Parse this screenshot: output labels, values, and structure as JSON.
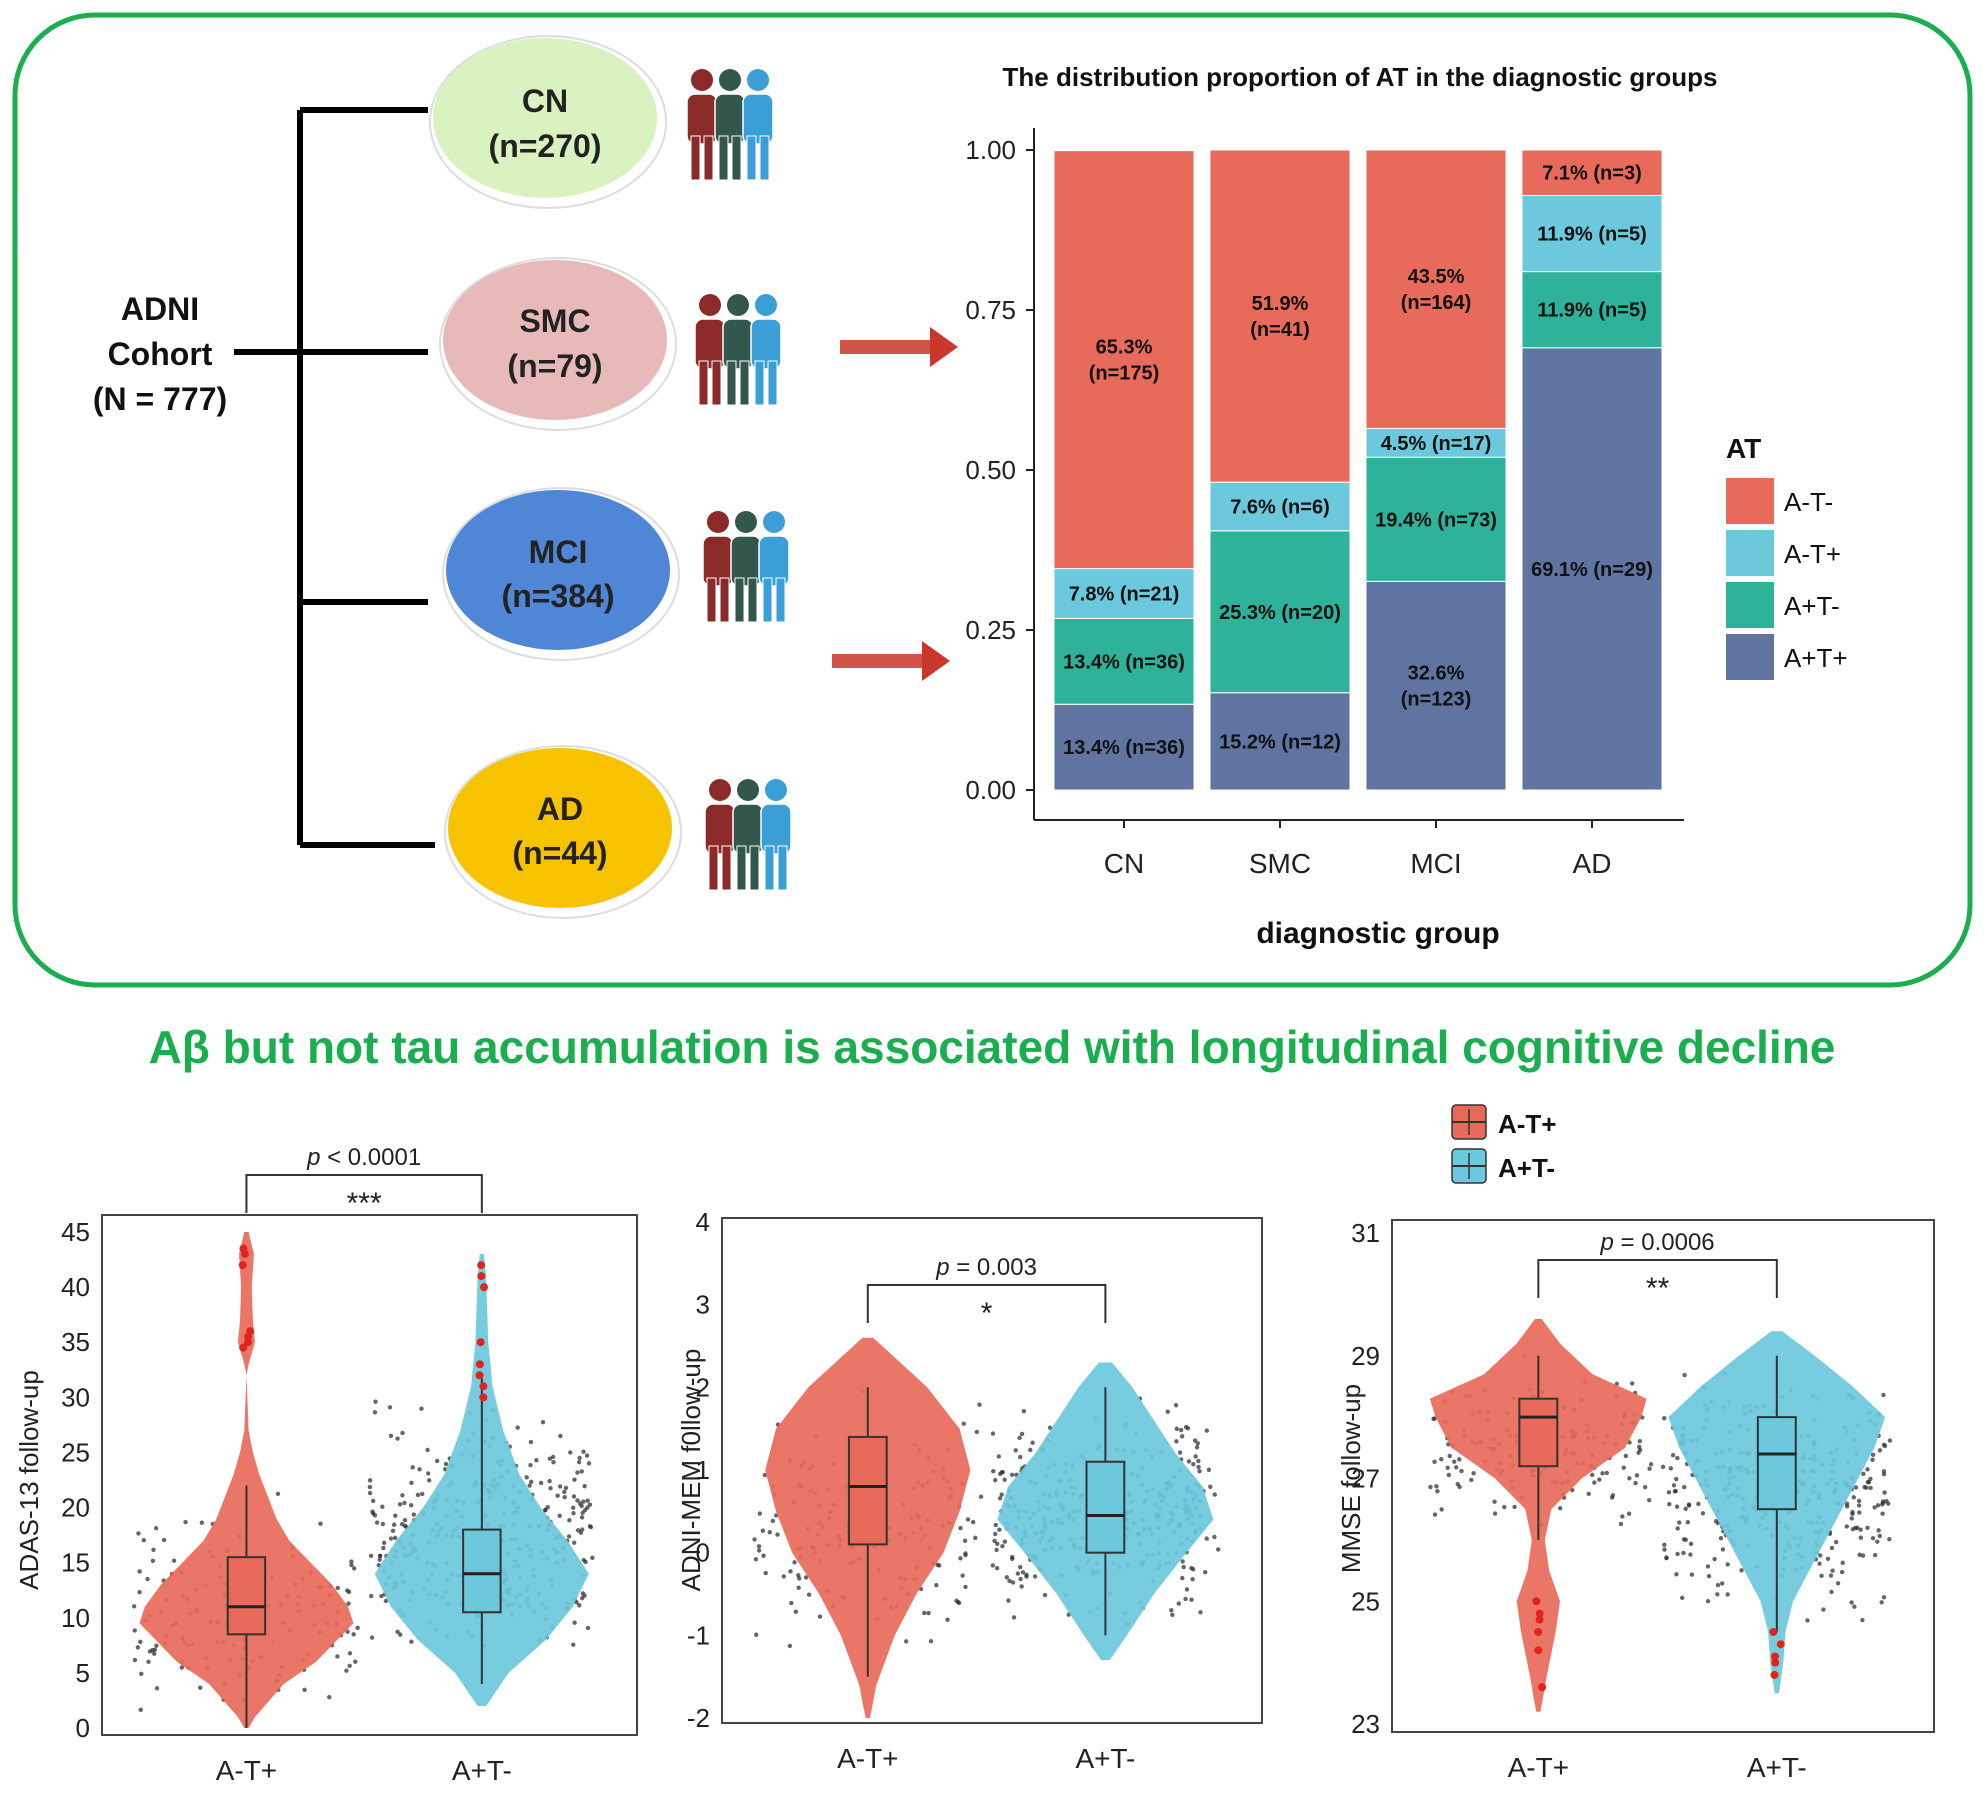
{
  "cohort": {
    "title_line1": "ADNI",
    "title_line2": "Cohort",
    "title_line3": "(N = 777)",
    "groups": [
      {
        "name": "CN",
        "count": "(n=270)",
        "color": "#d9f2c0"
      },
      {
        "name": "SMC",
        "count": "(n=79)",
        "color": "#e8b9b9"
      },
      {
        "name": "MCI",
        "count": "(n=384)",
        "color": "#4f86d6"
      },
      {
        "name": "AD",
        "count": "(n=44)",
        "color": "#f7c300"
      }
    ],
    "people_colors": [
      "#8c2a2a",
      "#33574c",
      "#3a9fd6"
    ]
  },
  "headline": "Aβ but not tau accumulation is associated with longitudinal cognitive decline",
  "colors": {
    "frame": "#1aae4e",
    "red": "#e86a5a",
    "cyan": "#6cc8dd",
    "teal": "#2fb29a",
    "slate": "#5f74a0",
    "arrow": "#c9362b"
  },
  "chart_data": [
    {
      "type": "bar",
      "stacked": true,
      "title": "The distribution proportion of AT in the diagnostic groups",
      "xlabel": "diagnostic group",
      "ylabel": "",
      "ylim": [
        0,
        1
      ],
      "yticks": [
        "0.00",
        "0.25",
        "0.50",
        "0.75",
        "1.00"
      ],
      "ytick_values": [
        0,
        0.25,
        0.5,
        0.75,
        1.0
      ],
      "categories": [
        "CN",
        "SMC",
        "MCI",
        "AD"
      ],
      "legend_title": "AT",
      "series": [
        {
          "name": "A+T+",
          "color": "#5f74a0",
          "values": [
            0.134,
            0.152,
            0.326,
            0.691
          ],
          "labels": [
            "13.4% (n=36)",
            "15.2% (n=12)",
            "32.6%\n(n=123)",
            "69.1% (n=29)"
          ]
        },
        {
          "name": "A+T-",
          "color": "#2fb29a",
          "values": [
            0.134,
            0.253,
            0.194,
            0.119
          ],
          "labels": [
            "13.4% (n=36)",
            "25.3% (n=20)",
            "19.4% (n=73)",
            "11.9% (n=5)"
          ]
        },
        {
          "name": "A-T+",
          "color": "#6cc8dd",
          "values": [
            0.078,
            0.076,
            0.045,
            0.119
          ],
          "labels": [
            "7.8% (n=21)",
            "7.6% (n=6)",
            "4.5% (n=17)",
            "11.9% (n=5)"
          ]
        },
        {
          "name": "A-T-",
          "color": "#e86a5a",
          "values": [
            0.653,
            0.519,
            0.435,
            0.071
          ],
          "labels": [
            "65.3%\n(n=175)",
            "51.9%\n(n=41)",
            "43.5%\n(n=164)",
            "7.1% (n=3)"
          ]
        }
      ],
      "legend_order": [
        "A-T-",
        "A-T+",
        "A+T-",
        "A+T+"
      ]
    },
    {
      "type": "violin_box",
      "ylabel": "ADAS-13 follow-up",
      "ylim": [
        0,
        45
      ],
      "yticks": [
        "0",
        "5",
        "10",
        "15",
        "20",
        "25",
        "30",
        "35",
        "40",
        "45"
      ],
      "ytick_values": [
        0,
        5,
        10,
        15,
        20,
        25,
        30,
        35,
        40,
        45
      ],
      "categories": [
        "A-T+",
        "A+T-"
      ],
      "boxes": [
        {
          "group": "A-T+",
          "min": 0,
          "q1": 8.5,
          "median": 11,
          "q3": 15.5,
          "max": 22
        },
        {
          "group": "A+T-",
          "min": 4,
          "q1": 10.5,
          "median": 14,
          "q3": 18,
          "max": 32
        }
      ],
      "p_text": "< 0.0001",
      "sig": "***"
    },
    {
      "type": "violin_box",
      "ylabel": "ADNI-MEM f0llow-up",
      "ylim": [
        -2,
        4
      ],
      "yticks": [
        "-2",
        "-1",
        "0",
        "1",
        "2",
        "3",
        "4"
      ],
      "ytick_values": [
        -2,
        -1,
        0,
        1,
        2,
        3,
        4
      ],
      "categories": [
        "A-T+",
        "A+T-"
      ],
      "boxes": [
        {
          "group": "A-T+",
          "min": -1.5,
          "q1": 0.1,
          "median": 0.8,
          "q3": 1.4,
          "max": 2.0
        },
        {
          "group": "A+T-",
          "min": -1.0,
          "q1": 0.0,
          "median": 0.45,
          "q3": 1.1,
          "max": 2.0
        }
      ],
      "p_text": "= 0.003",
      "sig": "*"
    },
    {
      "type": "violin_box",
      "ylabel": "MMSE follow-up",
      "ylim": [
        23,
        31
      ],
      "yticks": [
        "23",
        "25",
        "27",
        "29",
        "31"
      ],
      "ytick_values": [
        23,
        25,
        27,
        29,
        31
      ],
      "categories": [
        "A-T+",
        "A+T-"
      ],
      "boxes": [
        {
          "group": "A-T+",
          "min": 26,
          "q1": 27.2,
          "median": 28,
          "q3": 28.3,
          "max": 29
        },
        {
          "group": "A+T-",
          "min": 24.5,
          "q1": 26.5,
          "median": 27.4,
          "q3": 28,
          "max": 29
        }
      ],
      "p_text": "= 0.0006",
      "sig": "**"
    }
  ],
  "violin_legend": [
    "A-T+",
    "A+T-"
  ]
}
